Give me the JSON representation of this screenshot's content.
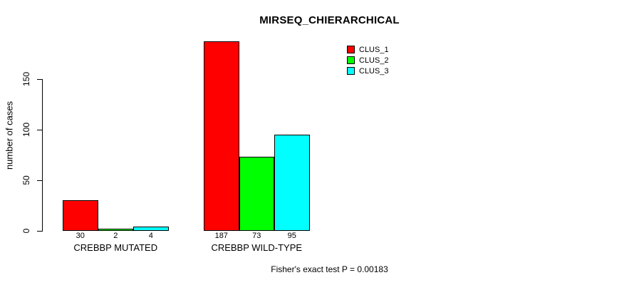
{
  "chart_data": {
    "type": "bar",
    "title": "MIRSEQ_CHIERARCHICAL",
    "ylabel": "number of cases",
    "xlabel": "",
    "categories": [
      "CREBBP MUTATED",
      "CREBBP WILD-TYPE"
    ],
    "series": [
      {
        "name": "CLUS_1",
        "color": "#ff0000",
        "values": [
          30,
          187
        ]
      },
      {
        "name": "CLUS_2",
        "color": "#00ff00",
        "values": [
          2,
          73
        ]
      },
      {
        "name": "CLUS_3",
        "color": "#00ffff",
        "values": [
          4,
          95
        ]
      }
    ],
    "yticks": [
      0,
      50,
      100,
      150
    ],
    "ylim": [
      0,
      190
    ],
    "grid": false,
    "legend_position": "top-right",
    "bar_border_color": "#000000",
    "annotation": "Fisher's exact test P = 0.00183"
  }
}
